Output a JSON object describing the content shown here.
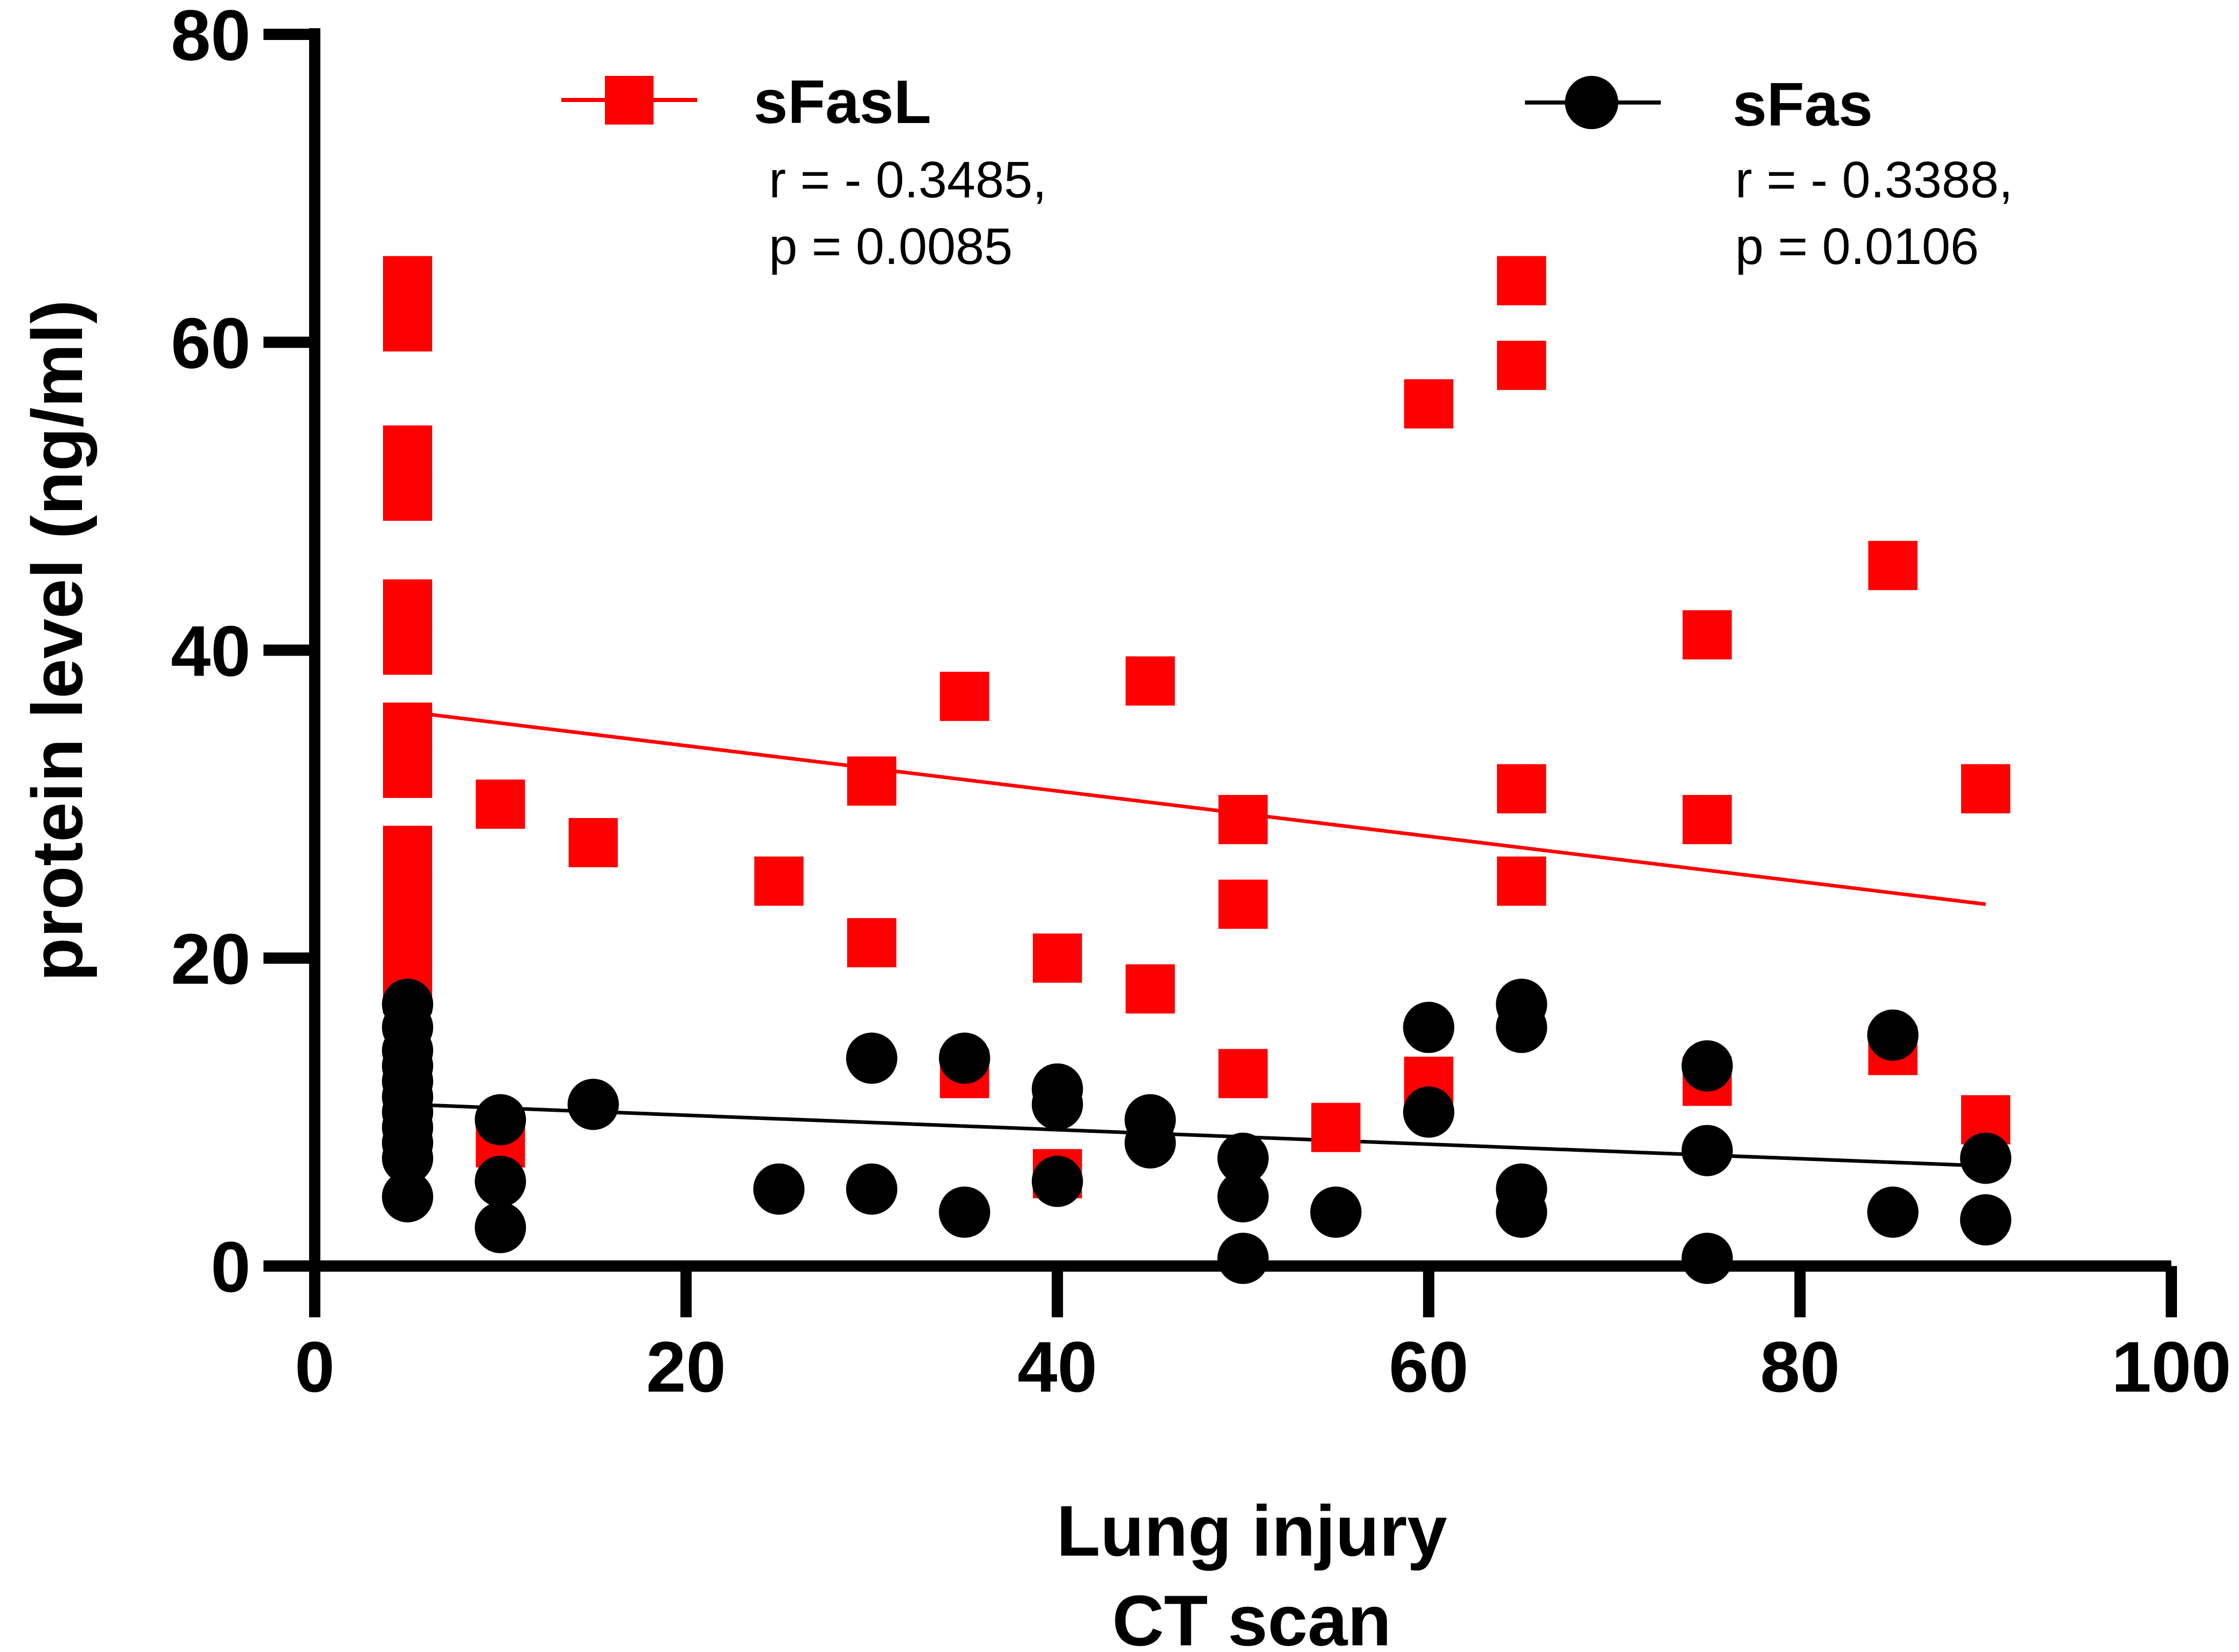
{
  "chart_data": {
    "type": "scatter",
    "xlabel": [
      "Lung injury",
      "CT scan"
    ],
    "ylabel": "protein level  (ng/ml)",
    "xlim": [
      0,
      100
    ],
    "ylim": [
      0,
      80
    ],
    "x_ticks": [
      0,
      20,
      40,
      60,
      80,
      100
    ],
    "y_ticks": [
      0,
      20,
      40,
      60,
      80
    ],
    "x_tick_labels": [
      "0",
      "20",
      "40",
      "60",
      "80",
      "100"
    ],
    "y_tick_labels": [
      "0",
      "20",
      "40",
      "60",
      "80"
    ],
    "grid": false,
    "legend_position": "top",
    "series": [
      {
        "name": "sFasL",
        "stat_r": "r = - 0.3485,",
        "stat_p": "p = 0.0085",
        "color": "#ff0000",
        "marker": "square",
        "points": [
          [
            5,
            64
          ],
          [
            5,
            61
          ],
          [
            5,
            53
          ],
          [
            5,
            50
          ],
          [
            5,
            43
          ],
          [
            5,
            40
          ],
          [
            5,
            35
          ],
          [
            5,
            32
          ],
          [
            5,
            27
          ],
          [
            5,
            24
          ],
          [
            5,
            21
          ],
          [
            5,
            18
          ],
          [
            10,
            30
          ],
          [
            10,
            8
          ],
          [
            15,
            27.5
          ],
          [
            25,
            25
          ],
          [
            30,
            31.5
          ],
          [
            30,
            21
          ],
          [
            35,
            37
          ],
          [
            35,
            12.5
          ],
          [
            40,
            20
          ],
          [
            40,
            6
          ],
          [
            45,
            38
          ],
          [
            45,
            18
          ],
          [
            50,
            29
          ],
          [
            50,
            23.5
          ],
          [
            50,
            12.5
          ],
          [
            55,
            9
          ],
          [
            60,
            56
          ],
          [
            60,
            12
          ],
          [
            65,
            64
          ],
          [
            65,
            58.5
          ],
          [
            65,
            31
          ],
          [
            65,
            25
          ],
          [
            75,
            41
          ],
          [
            75,
            29
          ],
          [
            75,
            12
          ],
          [
            85,
            45.5
          ],
          [
            85,
            14
          ],
          [
            90,
            31
          ],
          [
            90,
            9.5
          ]
        ],
        "fit": [
          [
            5,
            36
          ],
          [
            90,
            23.5
          ]
        ]
      },
      {
        "name": "sFas",
        "stat_r": "r = - 0.3388,",
        "stat_p": "p = 0.0106",
        "color": "#000000",
        "marker": "circle",
        "points": [
          [
            5,
            17
          ],
          [
            5,
            15.5
          ],
          [
            5,
            14
          ],
          [
            5,
            13
          ],
          [
            5,
            12
          ],
          [
            5,
            11
          ],
          [
            5,
            10
          ],
          [
            5,
            9
          ],
          [
            5,
            8
          ],
          [
            5,
            7
          ],
          [
            5,
            4.5
          ],
          [
            10,
            9.5
          ],
          [
            10,
            5.5
          ],
          [
            10,
            2.5
          ],
          [
            15,
            10.5
          ],
          [
            25,
            5
          ],
          [
            30,
            13.5
          ],
          [
            30,
            5
          ],
          [
            35,
            13.5
          ],
          [
            35,
            3.5
          ],
          [
            40,
            11.5
          ],
          [
            40,
            10.5
          ],
          [
            40,
            5.5
          ],
          [
            45,
            9.5
          ],
          [
            45,
            8
          ],
          [
            50,
            7
          ],
          [
            50,
            4.5
          ],
          [
            50,
            0.5
          ],
          [
            55,
            3.5
          ],
          [
            60,
            15.5
          ],
          [
            60,
            10
          ],
          [
            65,
            17
          ],
          [
            65,
            15.5
          ],
          [
            65,
            5
          ],
          [
            65,
            3.5
          ],
          [
            75,
            13
          ],
          [
            75,
            7.5
          ],
          [
            75,
            0.5
          ],
          [
            85,
            15
          ],
          [
            85,
            3.5
          ],
          [
            90,
            7
          ],
          [
            90,
            3
          ]
        ],
        "fit": [
          [
            5,
            10.5
          ],
          [
            90,
            6.5
          ]
        ]
      }
    ]
  }
}
